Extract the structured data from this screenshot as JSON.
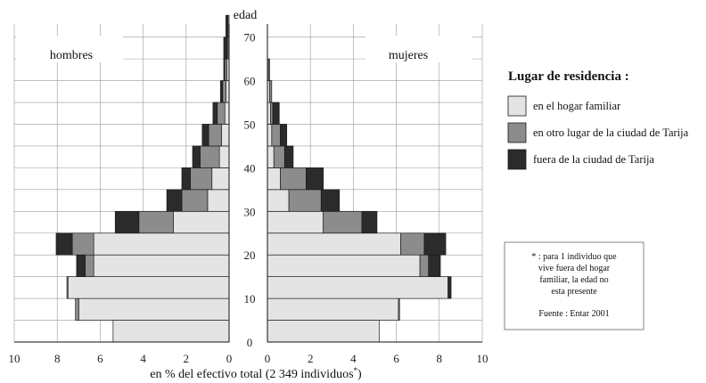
{
  "chart_data": {
    "type": "bar",
    "subtype": "population-pyramid",
    "age_axis_label": "edad",
    "age_ticks": [
      0,
      10,
      20,
      30,
      40,
      50,
      60,
      70
    ],
    "age_bin_width": 5,
    "x_ticks": [
      10,
      8,
      6,
      4,
      2,
      0
    ],
    "xlim": [
      0,
      10
    ],
    "xlabel": "en % del efectivo total (2 349 individuos",
    "xlabel_suffix": "*",
    "xlabel_close": ")",
    "left_label": "hombres",
    "right_label": "mujeres",
    "legend_title": "Lugar de residencia :",
    "series": [
      {
        "key": "hogar",
        "name": "en el hogar familiar",
        "color": "#e4e4e4"
      },
      {
        "key": "otro",
        "name": "en otro lugar de la ciudad de Tarija",
        "color": "#8c8c8c"
      },
      {
        "key": "fuera",
        "name": "fuera de la ciudad de Tarija",
        "color": "#2b2b2b"
      }
    ],
    "age_groups": [
      0,
      5,
      10,
      15,
      20,
      25,
      30,
      35,
      40,
      45,
      50,
      55,
      60,
      65,
      70
    ],
    "hombres": {
      "hogar": [
        5.4,
        7.0,
        7.5,
        6.3,
        6.3,
        2.6,
        1.0,
        0.8,
        0.45,
        0.35,
        0.2,
        0.15,
        0.1,
        0.05,
        0.05
      ],
      "otro": [
        0.0,
        0.15,
        0.05,
        0.4,
        1.0,
        1.6,
        1.2,
        1.0,
        0.9,
        0.6,
        0.35,
        0.15,
        0.1,
        0.05,
        0.0
      ],
      "fuera": [
        0.0,
        0.0,
        0.0,
        0.4,
        0.75,
        1.1,
        0.7,
        0.4,
        0.35,
        0.3,
        0.2,
        0.1,
        0.05,
        0.15,
        0.1
      ]
    },
    "mujeres": {
      "hogar": [
        5.2,
        6.1,
        8.4,
        7.1,
        6.2,
        2.6,
        1.0,
        0.6,
        0.3,
        0.2,
        0.15,
        0.1,
        0.05,
        0.0,
        0.0
      ],
      "otro": [
        0.0,
        0.05,
        0.05,
        0.4,
        1.1,
        1.8,
        1.5,
        1.2,
        0.5,
        0.4,
        0.1,
        0.1,
        0.05,
        0.0,
        0.0
      ],
      "fuera": [
        0.0,
        0.0,
        0.1,
        0.55,
        1.0,
        0.7,
        0.85,
        0.8,
        0.4,
        0.3,
        0.3,
        0.0,
        0.0,
        0.0,
        0.0
      ]
    },
    "grid": true
  },
  "note": {
    "asterisk_line": "* : para 1 individuo que",
    "line2": "vive fuera del hogar",
    "line3": "familiar, la edad no",
    "line4": "esta presente",
    "source": "Fuente : Entar 2001"
  }
}
